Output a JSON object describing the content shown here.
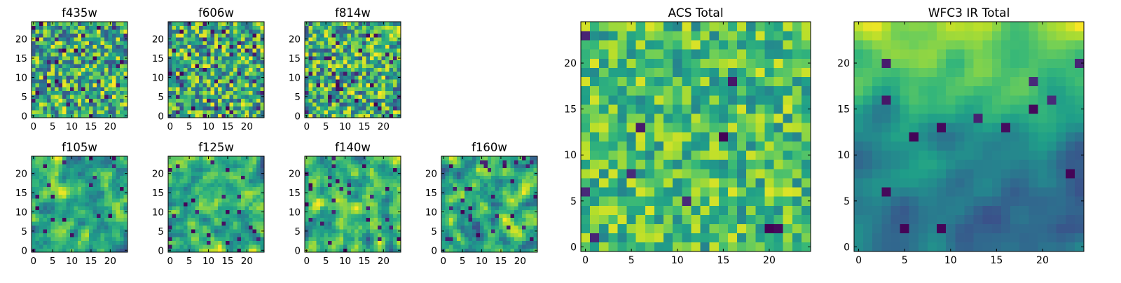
{
  "chart_data": [
    {
      "type": "heatmap",
      "title": "f435w",
      "xticks": [
        "0",
        "5",
        "10",
        "15",
        "20"
      ],
      "yticks": [
        "0",
        "5",
        "10",
        "15",
        "20"
      ],
      "xlim": [
        -0.5,
        24.5
      ],
      "ylim": [
        -0.5,
        24.5
      ],
      "grid_size": 25,
      "colormap": "viridis",
      "texture": {
        "seed": 11,
        "smooth": 0,
        "bias": "flat",
        "dark_fraction": 0.05
      }
    },
    {
      "type": "heatmap",
      "title": "f606w",
      "xticks": [
        "0",
        "5",
        "10",
        "15",
        "20"
      ],
      "yticks": [
        "0",
        "5",
        "10",
        "15",
        "20"
      ],
      "xlim": [
        -0.5,
        24.5
      ],
      "ylim": [
        -0.5,
        24.5
      ],
      "grid_size": 25,
      "colormap": "viridis",
      "texture": {
        "seed": 23,
        "smooth": 0,
        "bias": "flat",
        "dark_fraction": 0.06
      }
    },
    {
      "type": "heatmap",
      "title": "f814w",
      "xticks": [
        "0",
        "5",
        "10",
        "15",
        "20"
      ],
      "yticks": [
        "0",
        "5",
        "10",
        "15",
        "20"
      ],
      "xlim": [
        -0.5,
        24.5
      ],
      "ylim": [
        -0.5,
        24.5
      ],
      "grid_size": 25,
      "colormap": "viridis",
      "texture": {
        "seed": 37,
        "smooth": 0,
        "bias": "flat",
        "dark_fraction": 0.05
      }
    },
    {
      "type": "heatmap",
      "title": "f105w",
      "xticks": [
        "0",
        "5",
        "10",
        "15",
        "20"
      ],
      "yticks": [
        "0",
        "5",
        "10",
        "15",
        "20"
      ],
      "xlim": [
        -0.5,
        24.5
      ],
      "ylim": [
        -0.5,
        24.5
      ],
      "grid_size": 25,
      "colormap": "viridis",
      "texture": {
        "seed": 41,
        "smooth": 1,
        "bias": "flat",
        "dark_fraction": 0.04
      }
    },
    {
      "type": "heatmap",
      "title": "f125w",
      "xticks": [
        "0",
        "5",
        "10",
        "15",
        "20"
      ],
      "yticks": [
        "0",
        "5",
        "10",
        "15",
        "20"
      ],
      "xlim": [
        -0.5,
        24.5
      ],
      "ylim": [
        -0.5,
        24.5
      ],
      "grid_size": 25,
      "colormap": "viridis",
      "texture": {
        "seed": 53,
        "smooth": 1,
        "bias": "flat",
        "dark_fraction": 0.03
      }
    },
    {
      "type": "heatmap",
      "title": "f140w",
      "xticks": [
        "0",
        "5",
        "10",
        "15",
        "20"
      ],
      "yticks": [
        "0",
        "5",
        "10",
        "15",
        "20"
      ],
      "xlim": [
        -0.5,
        24.5
      ],
      "ylim": [
        -0.5,
        24.5
      ],
      "grid_size": 25,
      "colormap": "viridis",
      "texture": {
        "seed": 67,
        "smooth": 1,
        "bias": "flat",
        "dark_fraction": 0.04
      }
    },
    {
      "type": "heatmap",
      "title": "f160w",
      "xticks": [
        "0",
        "5",
        "10",
        "15",
        "20"
      ],
      "yticks": [
        "0",
        "5",
        "10",
        "15",
        "20"
      ],
      "xlim": [
        -0.5,
        24.5
      ],
      "ylim": [
        -0.5,
        24.5
      ],
      "grid_size": 25,
      "colormap": "viridis",
      "texture": {
        "seed": 79,
        "smooth": 1,
        "bias": "flat",
        "dark_fraction": 0.05
      }
    },
    {
      "type": "heatmap",
      "title": "ACS Total",
      "xticks": [
        "0",
        "5",
        "10",
        "15",
        "20"
      ],
      "yticks": [
        "0",
        "5",
        "10",
        "15",
        "20"
      ],
      "xlim": [
        -0.5,
        24.5
      ],
      "ylim": [
        -0.5,
        24.5
      ],
      "grid_size": 25,
      "colormap": "viridis",
      "texture": {
        "seed": 97,
        "smooth": 0,
        "bias": "high",
        "dark_fraction": 0.02
      }
    },
    {
      "type": "heatmap",
      "title": "WFC3 IR Total",
      "xticks": [
        "0",
        "5",
        "10",
        "15",
        "20"
      ],
      "yticks": [
        "0",
        "5",
        "10",
        "15",
        "20"
      ],
      "xlim": [
        -0.5,
        24.5
      ],
      "ylim": [
        -0.5,
        24.5
      ],
      "grid_size": 25,
      "colormap": "viridis",
      "texture": {
        "seed": 113,
        "smooth": 2,
        "bias": "top-bright",
        "dark_fraction": 0.03
      }
    }
  ]
}
